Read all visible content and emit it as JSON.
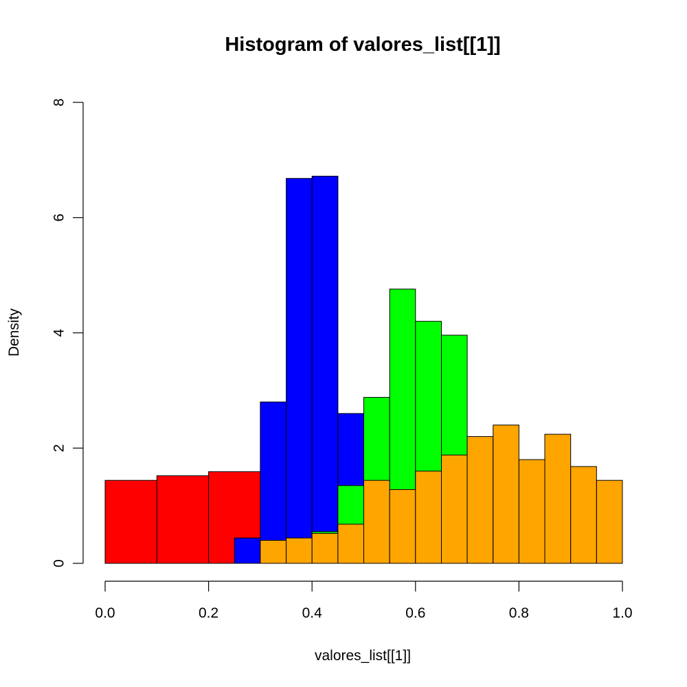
{
  "chart_data": {
    "type": "histogram",
    "title": "Histogram of valores_list[[1]]",
    "xlabel": "valores_list[[1]]",
    "ylabel": "Density",
    "xlim": [
      0,
      1
    ],
    "ylim": [
      0,
      8
    ],
    "x_ticks": [
      "0.0",
      "0.2",
      "0.4",
      "0.6",
      "0.8",
      "1.0"
    ],
    "x_tick_values": [
      0,
      0.2,
      0.4,
      0.6,
      0.8,
      1.0
    ],
    "y_ticks": [
      "0",
      "2",
      "4",
      "6",
      "8"
    ],
    "y_tick_values": [
      0,
      2,
      4,
      6,
      8
    ],
    "series": [
      {
        "name": "red",
        "color": "#ff0000",
        "bins": [
          {
            "x0": 0.0,
            "x1": 0.1,
            "density": 1.44
          },
          {
            "x0": 0.1,
            "x1": 0.2,
            "density": 1.52
          },
          {
            "x0": 0.2,
            "x1": 0.3,
            "density": 1.59
          }
        ]
      },
      {
        "name": "blue",
        "color": "#0000ff",
        "bins": [
          {
            "x0": 0.25,
            "x1": 0.3,
            "density": 0.44
          },
          {
            "x0": 0.3,
            "x1": 0.35,
            "density": 2.8
          },
          {
            "x0": 0.35,
            "x1": 0.4,
            "density": 6.68
          },
          {
            "x0": 0.4,
            "x1": 0.45,
            "density": 6.72
          },
          {
            "x0": 0.45,
            "x1": 0.5,
            "density": 2.6
          }
        ]
      },
      {
        "name": "green",
        "color": "#00ff00",
        "bins": [
          {
            "x0": 0.4,
            "x1": 0.45,
            "density": 0.55
          },
          {
            "x0": 0.45,
            "x1": 0.5,
            "density": 1.35
          },
          {
            "x0": 0.5,
            "x1": 0.55,
            "density": 2.88
          },
          {
            "x0": 0.55,
            "x1": 0.6,
            "density": 4.76
          },
          {
            "x0": 0.6,
            "x1": 0.65,
            "density": 4.2
          },
          {
            "x0": 0.65,
            "x1": 0.7,
            "density": 3.96
          }
        ]
      },
      {
        "name": "orange",
        "color": "#ffa500",
        "bins": [
          {
            "x0": 0.3,
            "x1": 0.35,
            "density": 0.4
          },
          {
            "x0": 0.35,
            "x1": 0.4,
            "density": 0.44
          },
          {
            "x0": 0.4,
            "x1": 0.45,
            "density": 0.52
          },
          {
            "x0": 0.45,
            "x1": 0.5,
            "density": 0.68
          },
          {
            "x0": 0.5,
            "x1": 0.55,
            "density": 1.44
          },
          {
            "x0": 0.55,
            "x1": 0.6,
            "density": 1.28
          },
          {
            "x0": 0.6,
            "x1": 0.65,
            "density": 1.6
          },
          {
            "x0": 0.65,
            "x1": 0.7,
            "density": 1.88
          },
          {
            "x0": 0.7,
            "x1": 0.75,
            "density": 2.2
          },
          {
            "x0": 0.75,
            "x1": 0.8,
            "density": 2.4
          },
          {
            "x0": 0.8,
            "x1": 0.85,
            "density": 1.8
          },
          {
            "x0": 0.85,
            "x1": 0.9,
            "density": 2.24
          },
          {
            "x0": 0.9,
            "x1": 0.95,
            "density": 1.68
          },
          {
            "x0": 0.95,
            "x1": 1.0,
            "density": 1.44
          }
        ]
      }
    ]
  }
}
